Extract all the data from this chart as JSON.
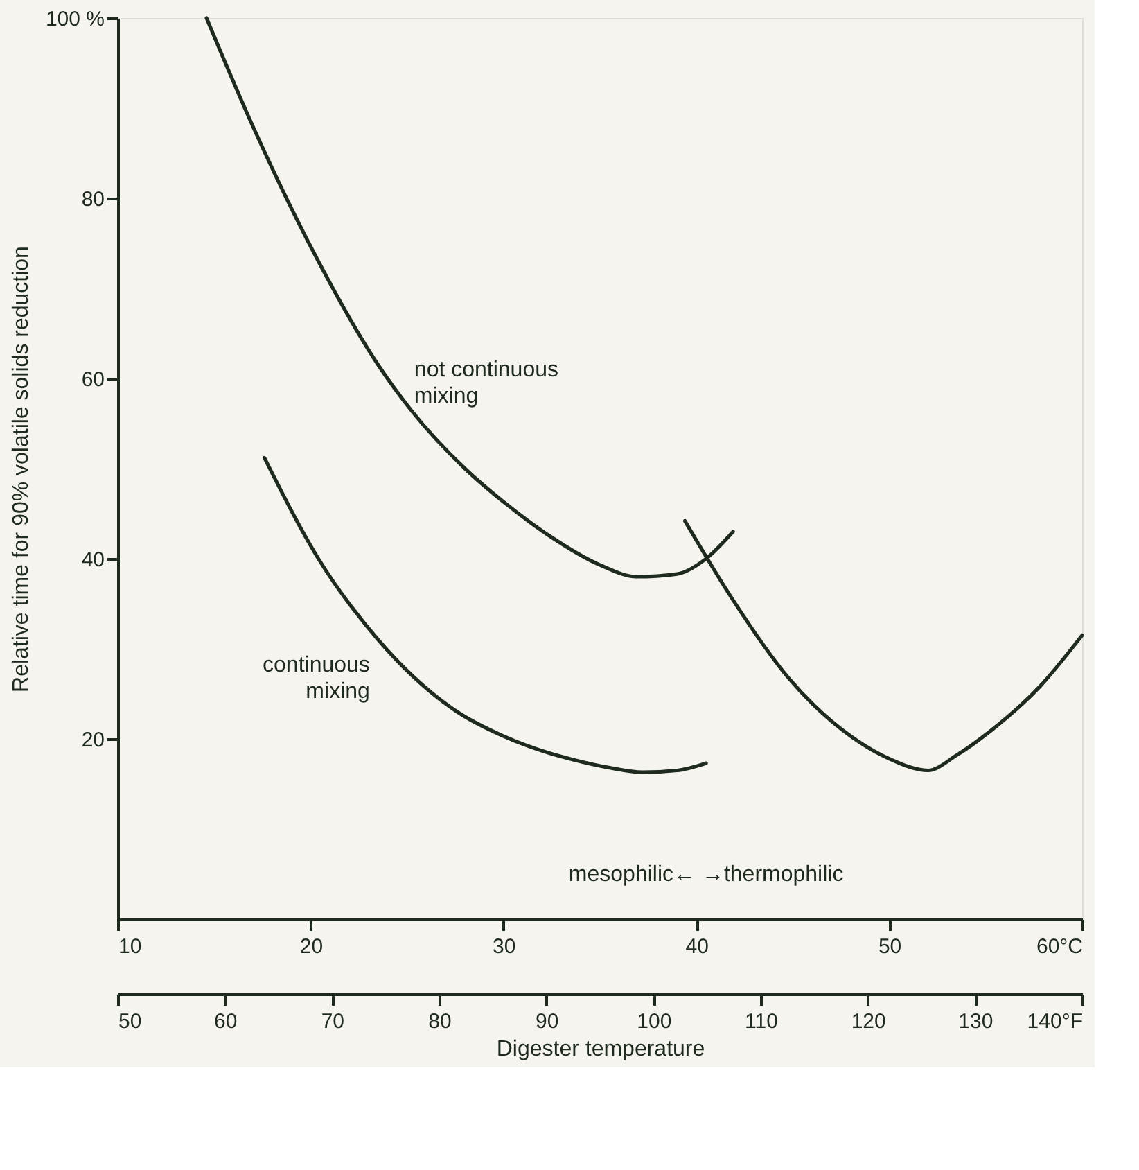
{
  "chart_data": {
    "type": "line",
    "ylabel": "Relative time for 90% volatile solids reduction",
    "xlabel": "Digester temperature",
    "xlim": [
      10,
      60
    ],
    "xticks": [
      10,
      20,
      30,
      40,
      50,
      {
        "value": 60,
        "label": "60°C"
      }
    ],
    "x2lim": [
      50,
      140
    ],
    "x2ticks": [
      50,
      60,
      70,
      80,
      90,
      100,
      110,
      120,
      130,
      {
        "value": 140,
        "label": "140°F"
      }
    ],
    "ylim": [
      0,
      100
    ],
    "yticks": [
      20,
      40,
      60,
      80,
      {
        "value": 100,
        "label": "100 %"
      }
    ],
    "grid": false,
    "legend": false,
    "marker": "none",
    "line_style": "solid",
    "series": [
      {
        "name": "not continuous mixing",
        "color": "#1f2a1f",
        "x": [
          14.6,
          17.0,
          20.4,
          23.5,
          25.2,
          28.0,
          30.0,
          32.4,
          35.0,
          36.9,
          39.0,
          40.5,
          41.9
        ],
        "values": [
          100,
          88,
          73,
          61.5,
          56.5,
          50,
          46.3,
          42.5,
          39.3,
          38,
          38.3,
          40,
          43
        ]
      },
      {
        "name": "continuous mixing",
        "color": "#1f2a1f",
        "x": [
          17.6,
          20.4,
          23.5,
          27.6,
          30.0,
          32.4,
          33.6,
          35.5,
          37.2,
          39.0,
          40.5
        ],
        "values": [
          51.2,
          40,
          31,
          23,
          20.3,
          18.4,
          17.7,
          16.8,
          16.3,
          16.5,
          17.3
        ]
      },
      {
        "color": "#1f2a1f",
        "x": [
          39.4,
          41.9,
          44.8,
          48.0,
          50.0,
          52.0,
          53.5,
          55.2,
          57.8,
          60.0
        ],
        "values": [
          44.2,
          35.4,
          26.7,
          20.3,
          17.8,
          16.5,
          18.2,
          20.8,
          25.8,
          31.5
        ]
      }
    ],
    "annotations": [
      "mesophilic←  →thermophilic"
    ]
  }
}
